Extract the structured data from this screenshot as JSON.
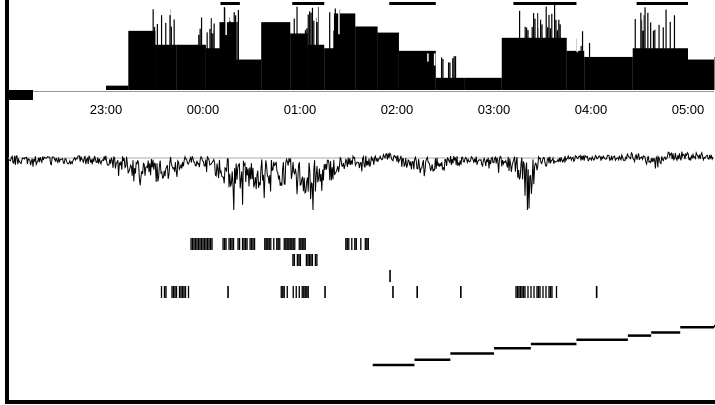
{
  "chart_data": [
    {
      "type": "area",
      "panel": "hypnogram",
      "x_unit": "hours after 23:00",
      "x_ticks": [
        "23:00",
        "00:00",
        "01:00",
        "02:00",
        "03:00",
        "04:00",
        "05:00"
      ],
      "xlim": [
        -1.0,
        6.2
      ],
      "level_range": [
        0,
        1
      ],
      "segments": [
        [
          -1.0,
          -0.77,
          0.05
        ],
        [
          -0.77,
          -0.49,
          0.68
        ],
        [
          -0.49,
          -0.27,
          0.52
        ],
        [
          -0.27,
          0.03,
          0.52
        ],
        [
          0.03,
          0.17,
          0.48
        ],
        [
          0.17,
          0.33,
          0.78
        ],
        [
          0.33,
          0.6,
          0.35
        ],
        [
          0.6,
          0.9,
          0.78
        ],
        [
          0.9,
          1.08,
          0.65
        ],
        [
          1.08,
          1.25,
          0.52
        ],
        [
          1.25,
          1.35,
          0.48
        ],
        [
          1.35,
          1.57,
          0.88
        ],
        [
          1.57,
          1.8,
          0.73
        ],
        [
          1.8,
          2.02,
          0.66
        ],
        [
          2.02,
          2.4,
          0.45
        ],
        [
          2.4,
          2.7,
          0.14
        ],
        [
          2.7,
          3.08,
          0.14
        ],
        [
          3.08,
          3.75,
          0.6
        ],
        [
          3.75,
          3.93,
          0.45
        ],
        [
          3.93,
          4.43,
          0.38
        ],
        [
          4.43,
          5.0,
          0.48
        ],
        [
          5.0,
          5.5,
          0.35
        ],
        [
          5.5,
          6.2,
          0.38
        ]
      ],
      "burst_regions": [
        [
          -0.52,
          -0.27,
          0.95
        ],
        [
          -0.05,
          0.13,
          0.85
        ],
        [
          0.2,
          0.38,
          0.98
        ],
        [
          0.92,
          1.2,
          0.98
        ],
        [
          1.3,
          1.45,
          0.96
        ],
        [
          2.28,
          2.6,
          0.42
        ],
        [
          3.2,
          3.72,
          0.98
        ],
        [
          3.82,
          4.0,
          0.7
        ],
        [
          4.45,
          4.9,
          0.98
        ]
      ],
      "top_bars": [
        [
          0.18,
          0.38
        ],
        [
          0.92,
          1.25
        ],
        [
          1.92,
          2.4
        ],
        [
          3.2,
          3.85
        ],
        [
          4.47,
          5.0
        ]
      ]
    },
    {
      "type": "line",
      "panel": "continuous signal",
      "x_unit": "hours after 23:00",
      "baseline": 0,
      "ylim": [
        -10,
        3
      ],
      "x": [
        -1.0,
        -0.85,
        -0.65,
        -0.45,
        -0.35,
        -0.2,
        0.0,
        0.2,
        0.35,
        0.55,
        0.75,
        0.95,
        1.15,
        1.3,
        1.5,
        1.7,
        1.9,
        2.1,
        2.3,
        2.5,
        2.7,
        2.9,
        3.1,
        3.3,
        3.35,
        3.45,
        3.6,
        3.9,
        4.2,
        4.5,
        4.65,
        4.8,
        5.1,
        5.4,
        6.0,
        6.2
      ],
      "y": [
        -0.5,
        -1.5,
        -2.5,
        -3.0,
        -2.0,
        -1.0,
        -0.5,
        -3.0,
        -5.0,
        -4.0,
        -3.0,
        -4.0,
        -6.0,
        -3.0,
        -1.0,
        -1.0,
        0.5,
        -1.0,
        -2.0,
        -1.0,
        -0.5,
        -1.0,
        -1.0,
        -3.0,
        -8.0,
        -1.0,
        -0.5,
        0.0,
        0.0,
        0.5,
        -1.5,
        0.5,
        0.5,
        -0.5,
        0.5,
        0.5
      ]
    },
    {
      "type": "scatter",
      "panel": "event rasters",
      "x_unit": "hours after 23:00",
      "rows": [
        {
          "intervals": [
            [
              -0.13,
              0.1
            ],
            [
              0.2,
              0.55
            ],
            [
              0.63,
              1.05
            ],
            [
              1.45,
              1.7
            ]
          ],
          "gap_every": [
            4,
            5
          ]
        },
        {
          "intervals": [
            [
              0.92,
              1.18
            ]
          ],
          "gap_every": [
            3
          ]
        },
        {
          "ticks": [
            1.92
          ]
        },
        {
          "intervals": [
            [
              -0.45,
              -0.15
            ],
            [
              0.8,
              1.08
            ],
            [
              3.22,
              3.65
            ]
          ],
          "ticks": [
            0.25,
            1.25,
            1.95,
            2.2,
            2.65,
            4.05
          ]
        }
      ]
    },
    {
      "type": "line",
      "panel": "step trace",
      "x_unit": "hours after 23:00",
      "ylim": [
        0,
        8
      ],
      "steps": [
        [
          1.75,
          2.18,
          0.0
        ],
        [
          2.18,
          2.55,
          0.5
        ],
        [
          2.55,
          3.0,
          1.1
        ],
        [
          3.0,
          3.38,
          1.6
        ],
        [
          3.38,
          3.85,
          2.0
        ],
        [
          3.85,
          4.38,
          2.4
        ],
        [
          4.38,
          4.62,
          2.8
        ],
        [
          4.62,
          4.92,
          3.1
        ],
        [
          4.92,
          5.55,
          3.6
        ],
        [
          5.55,
          6.2,
          3.7
        ]
      ]
    }
  ]
}
